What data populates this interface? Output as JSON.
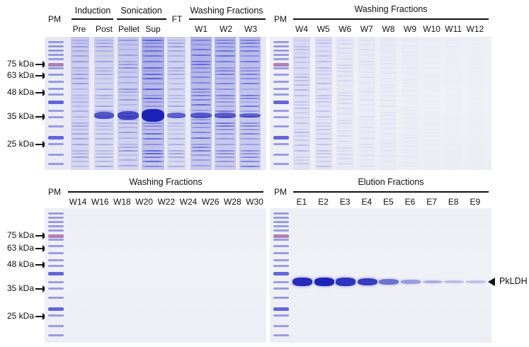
{
  "panels": {
    "top_left": {
      "pm": "PM",
      "groups": {
        "induction": "Induction",
        "sonication": "Sonication",
        "washing": "Washing Fractions"
      },
      "lanes": {
        "pre": "Pre",
        "post": "Post",
        "pellet": "Pellet",
        "sup": "Sup",
        "ft": "FT",
        "w1": "W1",
        "w2": "W2",
        "w3": "W3"
      },
      "markers": {
        "m75": "75 kDa",
        "m63": "63 kDa",
        "m48": "48 kDa",
        "m35": "35 kDa",
        "m25": "25 kDa"
      }
    },
    "top_right": {
      "pm": "PM",
      "group": "Washing Fractions",
      "lanes": [
        "W4",
        "W5",
        "W6",
        "W7",
        "W8",
        "W9",
        "W10",
        "W11",
        "W12"
      ]
    },
    "bottom_left": {
      "pm": "PM",
      "group": "Washing Fractions",
      "lanes": [
        "W14",
        "W16",
        "W18",
        "W20",
        "W22",
        "W24",
        "W26",
        "W28",
        "W30"
      ],
      "markers": {
        "m75": "75 kDa",
        "m63": "63 kDa",
        "m48": "48 kDa",
        "m35": "35 kDa",
        "m25": "25 kDa"
      }
    },
    "bottom_right": {
      "pm": "PM",
      "group": "Elution Fractions",
      "lanes": [
        "E1",
        "E2",
        "E3",
        "E4",
        "E5",
        "E6",
        "E7",
        "E8",
        "E9"
      ],
      "band_label": "PkLDH",
      "band_intensity": [
        0.95,
        1.0,
        0.9,
        0.85,
        0.55,
        0.3,
        0.22,
        0.12,
        0.08
      ]
    }
  },
  "colors": {
    "stain": "#3a3fd0",
    "stain_dark": "#1d22b8",
    "gel_bg": "#ebebf4",
    "ladder_red": "#8a4a8c"
  }
}
